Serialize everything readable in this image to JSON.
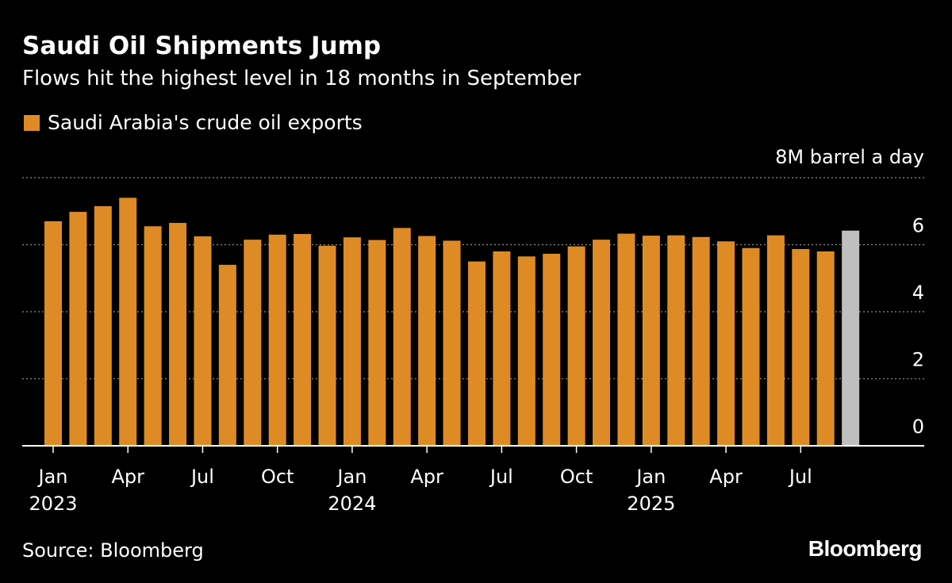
{
  "header": {
    "title": "Saudi Oil Shipments Jump",
    "subtitle": "Flows hit the highest level in 18 months in September"
  },
  "legend": {
    "label": "Saudi Arabia's crude oil exports",
    "color": "#de8b26"
  },
  "footer": {
    "source": "Source: Bloomberg",
    "logo": "Bloomberg"
  },
  "chart_data": {
    "type": "bar",
    "title": "Saudi Oil Shipments Jump",
    "subtitle": "Flows hit the highest level in 18 months in September",
    "unit_label": "8M barrel a day",
    "xlabel": "",
    "ylabel": "",
    "ylim": [
      0,
      8
    ],
    "yticks": [
      0,
      2,
      4,
      6,
      8
    ],
    "ytick_labels": [
      "0",
      "2",
      "4",
      "6",
      "8M barrel a day"
    ],
    "grid": true,
    "axis_side": "right",
    "bar_color": "#de8b26",
    "highlight_color": "#bfbfbf",
    "categories": [
      "Jan 2023",
      "Feb 2023",
      "Mar 2023",
      "Apr 2023",
      "May 2023",
      "Jun 2023",
      "Jul 2023",
      "Aug 2023",
      "Sep 2023",
      "Oct 2023",
      "Nov 2023",
      "Dec 2023",
      "Jan 2024",
      "Feb 2024",
      "Mar 2024",
      "Apr 2024",
      "May 2024",
      "Jun 2024",
      "Jul 2024",
      "Aug 2024",
      "Sep 2024",
      "Oct 2024",
      "Nov 2024",
      "Dec 2024",
      "Jan 2025",
      "Feb 2025",
      "Mar 2025",
      "Apr 2025",
      "May 2025",
      "Jun 2025",
      "Jul 2025",
      "Aug 2025",
      "Sep 2025"
    ],
    "values": [
      6.7,
      6.98,
      7.15,
      7.4,
      6.55,
      6.65,
      6.25,
      5.4,
      6.15,
      6.3,
      6.32,
      5.97,
      6.22,
      6.14,
      6.5,
      6.26,
      6.12,
      5.5,
      5.8,
      5.65,
      5.73,
      5.95,
      6.15,
      6.33,
      6.27,
      6.28,
      6.23,
      6.1,
      5.9,
      6.28,
      5.87,
      5.8,
      6.42
    ],
    "highlight_index": 32,
    "x_tick_labels": [
      {
        "index": 0,
        "month": "Jan",
        "year": "2023"
      },
      {
        "index": 3,
        "month": "Apr",
        "year": ""
      },
      {
        "index": 6,
        "month": "Jul",
        "year": ""
      },
      {
        "index": 9,
        "month": "Oct",
        "year": ""
      },
      {
        "index": 12,
        "month": "Jan",
        "year": "2024"
      },
      {
        "index": 15,
        "month": "Apr",
        "year": ""
      },
      {
        "index": 18,
        "month": "Jul",
        "year": ""
      },
      {
        "index": 21,
        "month": "Oct",
        "year": ""
      },
      {
        "index": 24,
        "month": "Jan",
        "year": "2025"
      },
      {
        "index": 27,
        "month": "Apr",
        "year": ""
      },
      {
        "index": 30,
        "month": "Jul",
        "year": ""
      }
    ]
  }
}
